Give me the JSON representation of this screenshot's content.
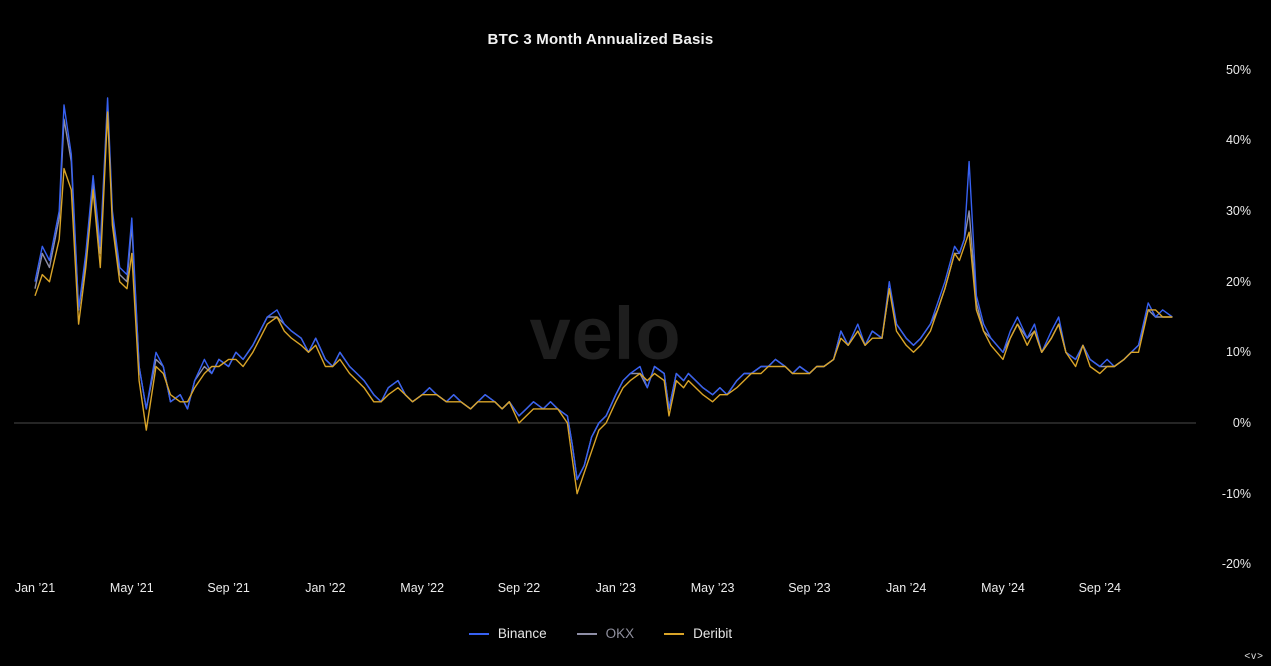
{
  "title": "BTC 3 Month Annualized Basis",
  "watermark": "velo",
  "corner_control": "<v>",
  "colors": {
    "background": "#000000",
    "zero_line": "#4a4a4a",
    "tick_text": "#ececec",
    "watermark": "#1e1e1e"
  },
  "chart_data": {
    "type": "line",
    "title": "BTC 3 Month Annualized Basis",
    "xlabel": "",
    "ylabel": "",
    "x_unit": "months since Jan 2021",
    "ylim": [
      -20,
      50
    ],
    "xlim": [
      -1,
      48.5
    ],
    "grid": false,
    "zero_line": true,
    "legend_position": "bottom-center",
    "x": [
      0,
      0.3,
      0.6,
      1,
      1.2,
      1.5,
      1.8,
      2.1,
      2.4,
      2.7,
      3,
      3.2,
      3.5,
      3.8,
      4,
      4.3,
      4.6,
      5,
      5.3,
      5.6,
      6,
      6.3,
      6.6,
      7,
      7.3,
      7.6,
      8,
      8.3,
      8.6,
      9,
      9.3,
      9.6,
      10,
      10.3,
      10.6,
      11,
      11.3,
      11.6,
      12,
      12.3,
      12.6,
      13,
      13.3,
      13.6,
      14,
      14.3,
      14.6,
      15,
      15.3,
      15.6,
      16,
      16.3,
      16.6,
      17,
      17.3,
      17.6,
      18,
      18.3,
      18.6,
      19,
      19.3,
      19.6,
      20,
      20.3,
      20.6,
      21,
      21.3,
      21.6,
      22,
      22.2,
      22.4,
      22.7,
      23,
      23.3,
      23.6,
      24,
      24.3,
      24.6,
      25,
      25.3,
      25.6,
      26,
      26.2,
      26.5,
      26.8,
      27,
      27.3,
      27.6,
      28,
      28.3,
      28.6,
      29,
      29.3,
      29.6,
      30,
      30.3,
      30.6,
      31,
      31.3,
      31.6,
      32,
      32.3,
      32.6,
      33,
      33.3,
      33.6,
      34,
      34.3,
      34.6,
      35,
      35.3,
      35.6,
      36,
      36.3,
      36.6,
      37,
      37.3,
      37.6,
      38,
      38.2,
      38.4,
      38.6,
      38.9,
      39.2,
      39.5,
      40,
      40.3,
      40.6,
      41,
      41.3,
      41.6,
      42,
      42.3,
      42.6,
      43,
      43.3,
      43.6,
      44,
      44.3,
      44.6,
      45,
      45.3,
      45.6,
      46,
      46.3,
      46.6,
      47
    ],
    "series": [
      {
        "name": "Binance",
        "color": "#3761f2",
        "legend_text_color": "#e6e6e6",
        "values": [
          20,
          25,
          23,
          30,
          45,
          38,
          16,
          24,
          35,
          25,
          46,
          30,
          22,
          21,
          29,
          8,
          2,
          10,
          8,
          3,
          4,
          2,
          6,
          9,
          7,
          9,
          8,
          10,
          9,
          11,
          13,
          15,
          16,
          14,
          13,
          12,
          10,
          12,
          9,
          8,
          10,
          8,
          7,
          6,
          4,
          3,
          5,
          6,
          4,
          3,
          4,
          5,
          4,
          3,
          4,
          3,
          2,
          3,
          4,
          3,
          2,
          3,
          1,
          2,
          3,
          2,
          3,
          2,
          1,
          -3,
          -8,
          -6,
          -2,
          0,
          1,
          4,
          6,
          7,
          8,
          5,
          8,
          7,
          2,
          7,
          6,
          7,
          6,
          5,
          4,
          5,
          4,
          6,
          7,
          7,
          8,
          8,
          9,
          8,
          7,
          8,
          7,
          8,
          8,
          9,
          13,
          11,
          14,
          11,
          13,
          12,
          20,
          14,
          12,
          11,
          12,
          14,
          17,
          20,
          25,
          24,
          26,
          37,
          18,
          14,
          12,
          10,
          13,
          15,
          12,
          14,
          10,
          13,
          15,
          10,
          9,
          11,
          9,
          8,
          9,
          8,
          9,
          10,
          11,
          17,
          15,
          16,
          15
        ]
      },
      {
        "name": "OKX",
        "color": "#8e8ea6",
        "legend_text_color": "#90909e",
        "values": [
          19,
          24,
          22,
          29,
          43,
          37,
          16,
          23,
          34,
          24,
          45,
          29,
          21,
          20,
          28,
          8,
          2,
          9,
          8,
          3,
          4,
          2,
          6,
          8,
          7,
          9,
          8,
          10,
          9,
          11,
          13,
          15,
          15,
          14,
          13,
          12,
          10,
          12,
          9,
          8,
          10,
          8,
          7,
          6,
          4,
          3,
          5,
          6,
          4,
          3,
          4,
          5,
          4,
          3,
          4,
          3,
          2,
          3,
          4,
          3,
          2,
          3,
          1,
          2,
          3,
          2,
          3,
          2,
          1,
          -3,
          -8,
          -6,
          -2,
          0,
          1,
          4,
          6,
          7,
          7,
          5,
          8,
          7,
          2,
          7,
          6,
          7,
          6,
          5,
          4,
          5,
          4,
          6,
          7,
          7,
          8,
          8,
          9,
          8,
          7,
          8,
          7,
          8,
          8,
          9,
          13,
          11,
          13,
          11,
          13,
          12,
          19,
          14,
          12,
          11,
          12,
          14,
          16,
          19,
          24,
          24,
          26,
          30,
          17,
          13,
          12,
          10,
          12,
          14,
          12,
          13,
          10,
          12,
          14,
          10,
          9,
          11,
          9,
          8,
          8,
          8,
          9,
          10,
          11,
          16,
          15,
          15,
          15
        ]
      },
      {
        "name": "Deribit",
        "color": "#d9a428",
        "legend_text_color": "#e6e6e6",
        "values": [
          18,
          21,
          20,
          26,
          36,
          33,
          14,
          22,
          33,
          22,
          44,
          28,
          20,
          19,
          24,
          6,
          -1,
          8,
          7,
          4,
          3,
          3,
          5,
          7,
          8,
          8,
          9,
          9,
          8,
          10,
          12,
          14,
          15,
          13,
          12,
          11,
          10,
          11,
          8,
          8,
          9,
          7,
          6,
          5,
          3,
          3,
          4,
          5,
          4,
          3,
          4,
          4,
          4,
          3,
          3,
          3,
          2,
          3,
          3,
          3,
          2,
          3,
          0,
          1,
          2,
          2,
          2,
          2,
          0,
          -5,
          -10,
          -7,
          -4,
          -1,
          0,
          3,
          5,
          6,
          7,
          6,
          7,
          6,
          1,
          6,
          5,
          6,
          5,
          4,
          3,
          4,
          4,
          5,
          6,
          7,
          7,
          8,
          8,
          8,
          7,
          7,
          7,
          8,
          8,
          9,
          12,
          11,
          13,
          11,
          12,
          12,
          19,
          13,
          11,
          10,
          11,
          13,
          16,
          19,
          24,
          23,
          25,
          27,
          16,
          13,
          11,
          9,
          12,
          14,
          11,
          13,
          10,
          12,
          14,
          10,
          8,
          11,
          8,
          7,
          8,
          8,
          9,
          10,
          10,
          16,
          16,
          15,
          15
        ]
      }
    ],
    "x_ticks": [
      {
        "t": 0,
        "label": "Jan ’21"
      },
      {
        "t": 4,
        "label": "May ’21"
      },
      {
        "t": 8,
        "label": "Sep ’21"
      },
      {
        "t": 12,
        "label": "Jan ’22"
      },
      {
        "t": 16,
        "label": "May ’22"
      },
      {
        "t": 20,
        "label": "Sep ’22"
      },
      {
        "t": 24,
        "label": "Jan ’23"
      },
      {
        "t": 28,
        "label": "May ’23"
      },
      {
        "t": 32,
        "label": "Sep ’23"
      },
      {
        "t": 36,
        "label": "Jan ’24"
      },
      {
        "t": 40,
        "label": "May ’24"
      },
      {
        "t": 44,
        "label": "Sep ’24"
      }
    ],
    "y_ticks": [
      {
        "value": 50,
        "label": "50%"
      },
      {
        "value": 40,
        "label": "40%"
      },
      {
        "value": 30,
        "label": "30%"
      },
      {
        "value": 20,
        "label": "20%"
      },
      {
        "value": 10,
        "label": "10%"
      },
      {
        "value": 0,
        "label": "0%"
      },
      {
        "value": -10,
        "label": "-10%"
      },
      {
        "value": -20,
        "label": "-20%"
      }
    ]
  }
}
